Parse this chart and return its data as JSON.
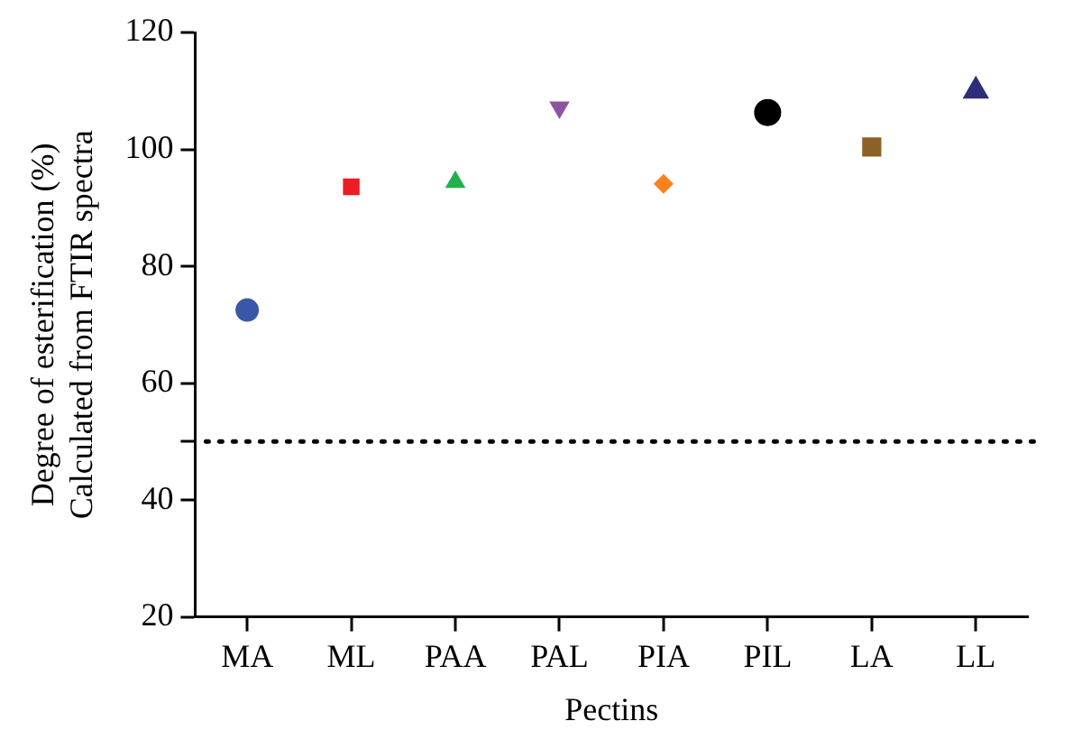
{
  "chart_data": {
    "type": "scatter",
    "xlabel": "Pectins",
    "ylabel": "Degree of esterification (%)\nCalculated from FTIR spectra",
    "categories": [
      "MA",
      "ML",
      "PAA",
      "PAL",
      "PIA",
      "PIL",
      "LA",
      "LL"
    ],
    "series": [
      {
        "color": "#3a56a8",
        "marker": "circle",
        "values": [
          72.5,
          null,
          null,
          null,
          null,
          null,
          null,
          null
        ]
      },
      {
        "color": "#ee1c24",
        "marker": "square",
        "values": [
          null,
          93.6,
          null,
          null,
          null,
          null,
          null,
          null
        ]
      },
      {
        "color": "#22b14c",
        "marker": "triangle",
        "values": [
          null,
          null,
          94.4,
          null,
          null,
          null,
          null,
          null
        ]
      },
      {
        "color": "#8e52a1",
        "marker": "triangle-down",
        "values": [
          null,
          null,
          null,
          107.2,
          null,
          null,
          null,
          null
        ]
      },
      {
        "color": "#f7821e",
        "marker": "diamond",
        "values": [
          null,
          null,
          null,
          null,
          94.1,
          null,
          null,
          null
        ]
      },
      {
        "color": "#000000",
        "marker": "circle",
        "values": [
          null,
          null,
          null,
          null,
          null,
          106.3,
          null,
          null
        ]
      },
      {
        "color": "#8c6026",
        "marker": "square",
        "values": [
          null,
          null,
          null,
          null,
          null,
          null,
          100.4,
          null
        ]
      },
      {
        "color": "#2e2d7c",
        "marker": "triangle",
        "values": [
          null,
          null,
          null,
          null,
          null,
          null,
          null,
          110.0
        ]
      }
    ],
    "ylim": [
      20,
      120
    ],
    "yticks": [
      20,
      40,
      {
        "value": 50,
        "label": null
      },
      60,
      80,
      100,
      120
    ],
    "ref_lines": [
      {
        "axis": "y",
        "value": 50,
        "color": "#000000",
        "line_style": "dotted"
      }
    ],
    "grid": false,
    "legend": false
  }
}
